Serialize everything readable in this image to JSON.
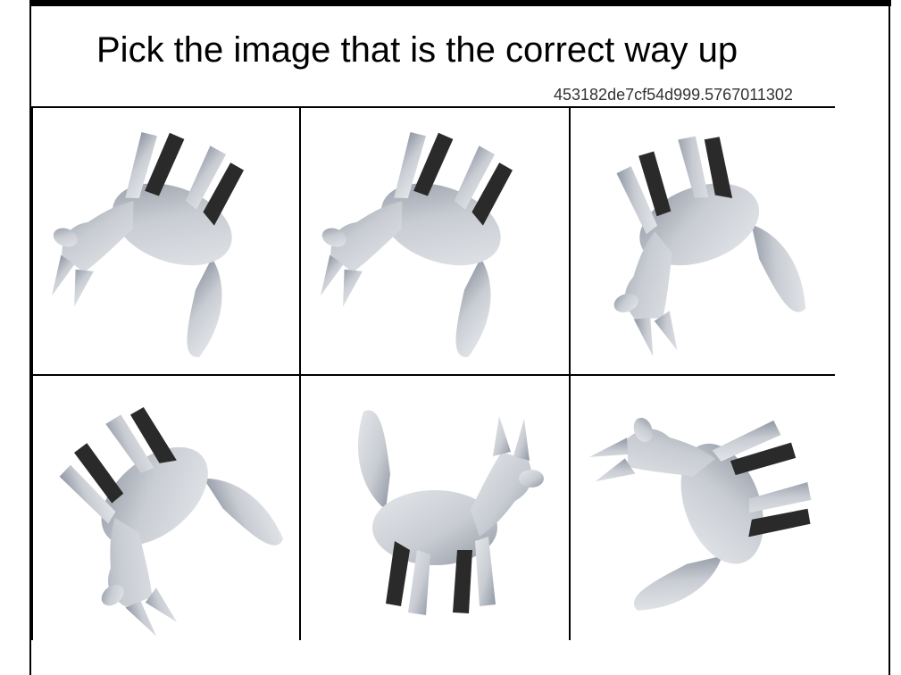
{
  "prompt": {
    "title": "Pick the image that is the correct way up",
    "session_id": "453182de7cf54d999.5767011302"
  },
  "tiles": [
    {
      "label": "",
      "rotation_deg": 200,
      "subject": "dog-figure"
    },
    {
      "label": "",
      "rotation_deg": 200,
      "subject": "dog-figure"
    },
    {
      "label": "",
      "rotation_deg": 160,
      "subject": "dog-figure"
    },
    {
      "label": "",
      "rotation_deg": 140,
      "subject": "dog-figure"
    },
    {
      "label": "",
      "rotation_deg": 0,
      "subject": "dog-figure"
    },
    {
      "label": "",
      "rotation_deg": 250,
      "subject": "dog-figure"
    }
  ],
  "colors": {
    "figure_fill": "#c9cdd3",
    "figure_shadow": "#8f96a3",
    "figure_dark": "#2a2a2a"
  }
}
